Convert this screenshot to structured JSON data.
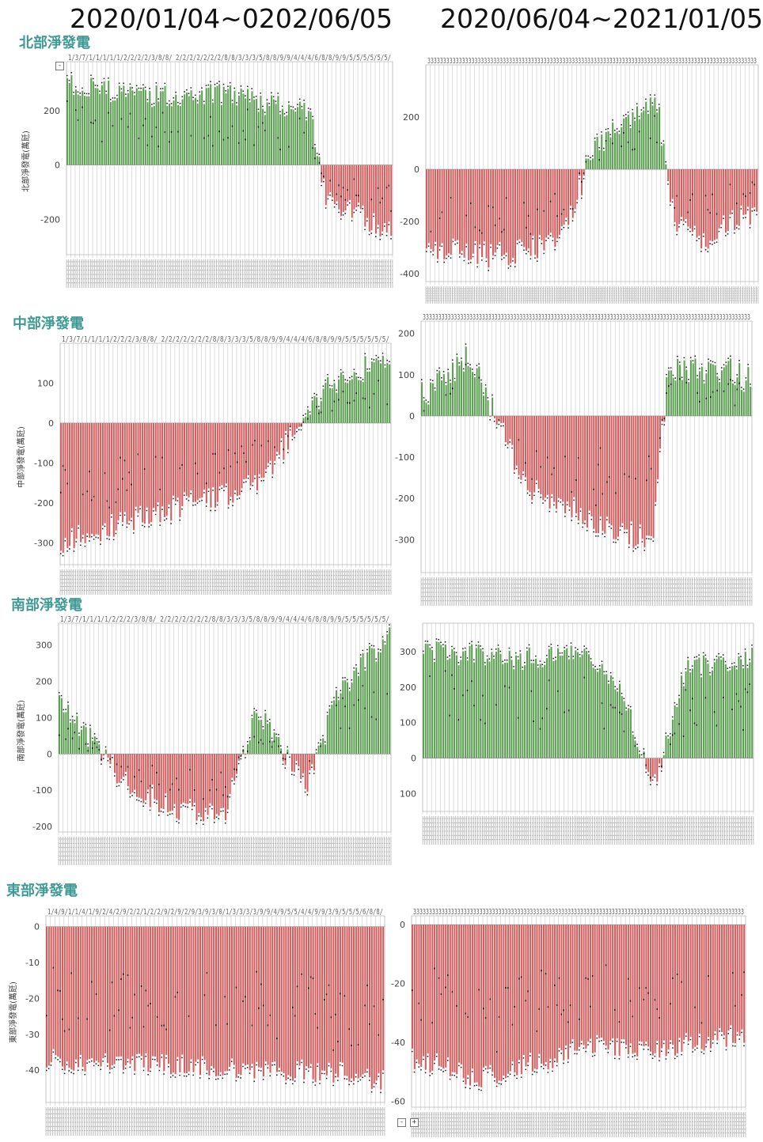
{
  "header": {
    "left_range": "2020/01/04~0202/06/05",
    "right_range": "2020/06/04~2021/01/05"
  },
  "colors": {
    "positive": "#5a9e50",
    "negative": "#d55c5c",
    "title": "#3f9a95",
    "grid": "#c8c8c8"
  },
  "regions": [
    {
      "title": "北部淨發電"
    },
    {
      "title": "中部淨發電"
    },
    {
      "title": "南部淨發電"
    },
    {
      "title": "東部淨發電"
    }
  ],
  "controls": {
    "collapse": "-",
    "expand": "+"
  },
  "chart_data": [
    {
      "type": "bar",
      "region": "north",
      "period": "left",
      "ylabel": "北部淨發電(萬瓩)",
      "ylim": [
        -330,
        380
      ],
      "yticks": [
        -200,
        0,
        200
      ],
      "top_tick_text": "1/3/7/1/1/1/1/1/2/2/2/2/3/8/8/ 2/2/2/2/2/2/2/8/8/3/3/3/5/8/8/9/9/4/4/4/6/8/8/9/9/5/5/5/5/5/5/",
      "profile": [
        [
          0,
          300
        ],
        [
          0.25,
          250
        ],
        [
          0.5,
          260
        ],
        [
          0.6,
          230
        ],
        [
          0.75,
          180
        ],
        [
          0.8,
          -120
        ],
        [
          0.9,
          -180
        ],
        [
          1,
          -250
        ]
      ]
    },
    {
      "type": "bar",
      "region": "north",
      "period": "right",
      "ylabel": "",
      "ylim": [
        -430,
        400
      ],
      "yticks": [
        -400,
        -200,
        0,
        200
      ],
      "top_tick_text": "333333333333333333333333333333333333333333333333333333333333333333333333333333333333333333333333333333333",
      "profile": [
        [
          0,
          -300
        ],
        [
          0.2,
          -330
        ],
        [
          0.4,
          -280
        ],
        [
          0.5,
          50
        ],
        [
          0.6,
          200
        ],
        [
          0.7,
          240
        ],
        [
          0.75,
          -200
        ],
        [
          0.85,
          -300
        ],
        [
          0.9,
          -200
        ],
        [
          1,
          -180
        ]
      ]
    },
    {
      "type": "bar",
      "region": "central",
      "period": "left",
      "ylabel": "中部淨發電(萬瓩)",
      "ylim": [
        -355,
        200
      ],
      "yticks": [
        -300,
        -200,
        -100,
        0,
        100
      ],
      "top_tick_text": "1/3/7/1/1/1/1/2/2/2/3/8/8/ 2/2/2/2/2/2/2/8/8/3/3/3/5/8/8/9/9/4/4/4/6/8/8/9/9/5/5/5/5/5/5/",
      "profile": [
        [
          0,
          -300
        ],
        [
          0.2,
          -250
        ],
        [
          0.4,
          -200
        ],
        [
          0.6,
          -150
        ],
        [
          0.8,
          80
        ],
        [
          0.9,
          130
        ],
        [
          1,
          150
        ]
      ]
    },
    {
      "type": "bar",
      "region": "central",
      "period": "right",
      "ylabel": "",
      "ylim": [
        -380,
        230
      ],
      "yticks": [
        -300,
        -200,
        -100,
        0,
        100,
        200
      ],
      "top_tick_text": "333333333333333333333333333333333333333333333333333333333333333333333333333333333333333333333333333333333",
      "profile": [
        [
          0,
          50
        ],
        [
          0.15,
          150
        ],
        [
          0.3,
          -150
        ],
        [
          0.5,
          -250
        ],
        [
          0.7,
          -300
        ],
        [
          0.75,
          100
        ],
        [
          0.9,
          120
        ],
        [
          1,
          80
        ]
      ]
    },
    {
      "type": "bar",
      "region": "south",
      "period": "left",
      "ylabel": "南部淨發電(萬瓩)",
      "ylim": [
        -215,
        360
      ],
      "yticks": [
        -200,
        -100,
        0,
        100,
        200,
        300
      ],
      "top_tick_text": "1/3/7/1/1/1/1/2/2/2/3/8/8/ 2/2/2/2/2/2/2/8/8/3/3/3/5/8/8/9/9/4/4/4/6/8/8/9/9/5/5/5/5/5/5/",
      "profile": [
        [
          0,
          150
        ],
        [
          0.2,
          -80
        ],
        [
          0.35,
          -150
        ],
        [
          0.5,
          -160
        ],
        [
          0.6,
          120
        ],
        [
          0.75,
          -100
        ],
        [
          0.85,
          180
        ],
        [
          1,
          320
        ]
      ]
    },
    {
      "type": "bar",
      "region": "south",
      "period": "right",
      "ylabel": "",
      "ylim": [
        -150,
        380
      ],
      "yticks": [
        0,
        100,
        200,
        300
      ],
      "ytick_labels": [
        "0",
        "100",
        "200",
        "300"
      ],
      "extra_tick": {
        "value": -100,
        "label": "100"
      },
      "top_tick_text": "",
      "profile": [
        [
          0,
          300
        ],
        [
          0.3,
          280
        ],
        [
          0.5,
          300
        ],
        [
          0.6,
          200
        ],
        [
          0.7,
          -80
        ],
        [
          0.8,
          250
        ],
        [
          1,
          280
        ]
      ]
    },
    {
      "type": "bar",
      "region": "east",
      "period": "left",
      "ylabel": "東部淨發電(萬瓩)",
      "ylim": [
        -49,
        3
      ],
      "yticks": [
        -40,
        -30,
        -20,
        -10,
        0
      ],
      "top_tick_text": "1/4/9/1/1/4/1/9/2/4/2/9/2/2/1/2/2/9/2/9/2/9/3/9/3/0/1/3/3/3/3/9/9/4/9/5/5/4/4/9/9/3/9/5/5/5/6/8/8/",
      "profile": [
        [
          0,
          -37
        ],
        [
          0.3,
          -38
        ],
        [
          0.5,
          -39
        ],
        [
          0.75,
          -40
        ],
        [
          0.9,
          -41
        ],
        [
          1,
          -43
        ]
      ]
    },
    {
      "type": "bar",
      "region": "east",
      "period": "right",
      "ylabel": "",
      "ylim": [
        -62,
        3
      ],
      "yticks": [
        -60,
        -40,
        -20,
        0
      ],
      "top_tick_text": "333333333333333333333333333333333333333333333333333333333333333333333333333333333333333333333333333333333",
      "profile": [
        [
          0,
          -45
        ],
        [
          0.2,
          -52
        ],
        [
          0.45,
          -44
        ],
        [
          0.55,
          -40
        ],
        [
          0.75,
          -42
        ],
        [
          1,
          -37
        ]
      ]
    }
  ]
}
